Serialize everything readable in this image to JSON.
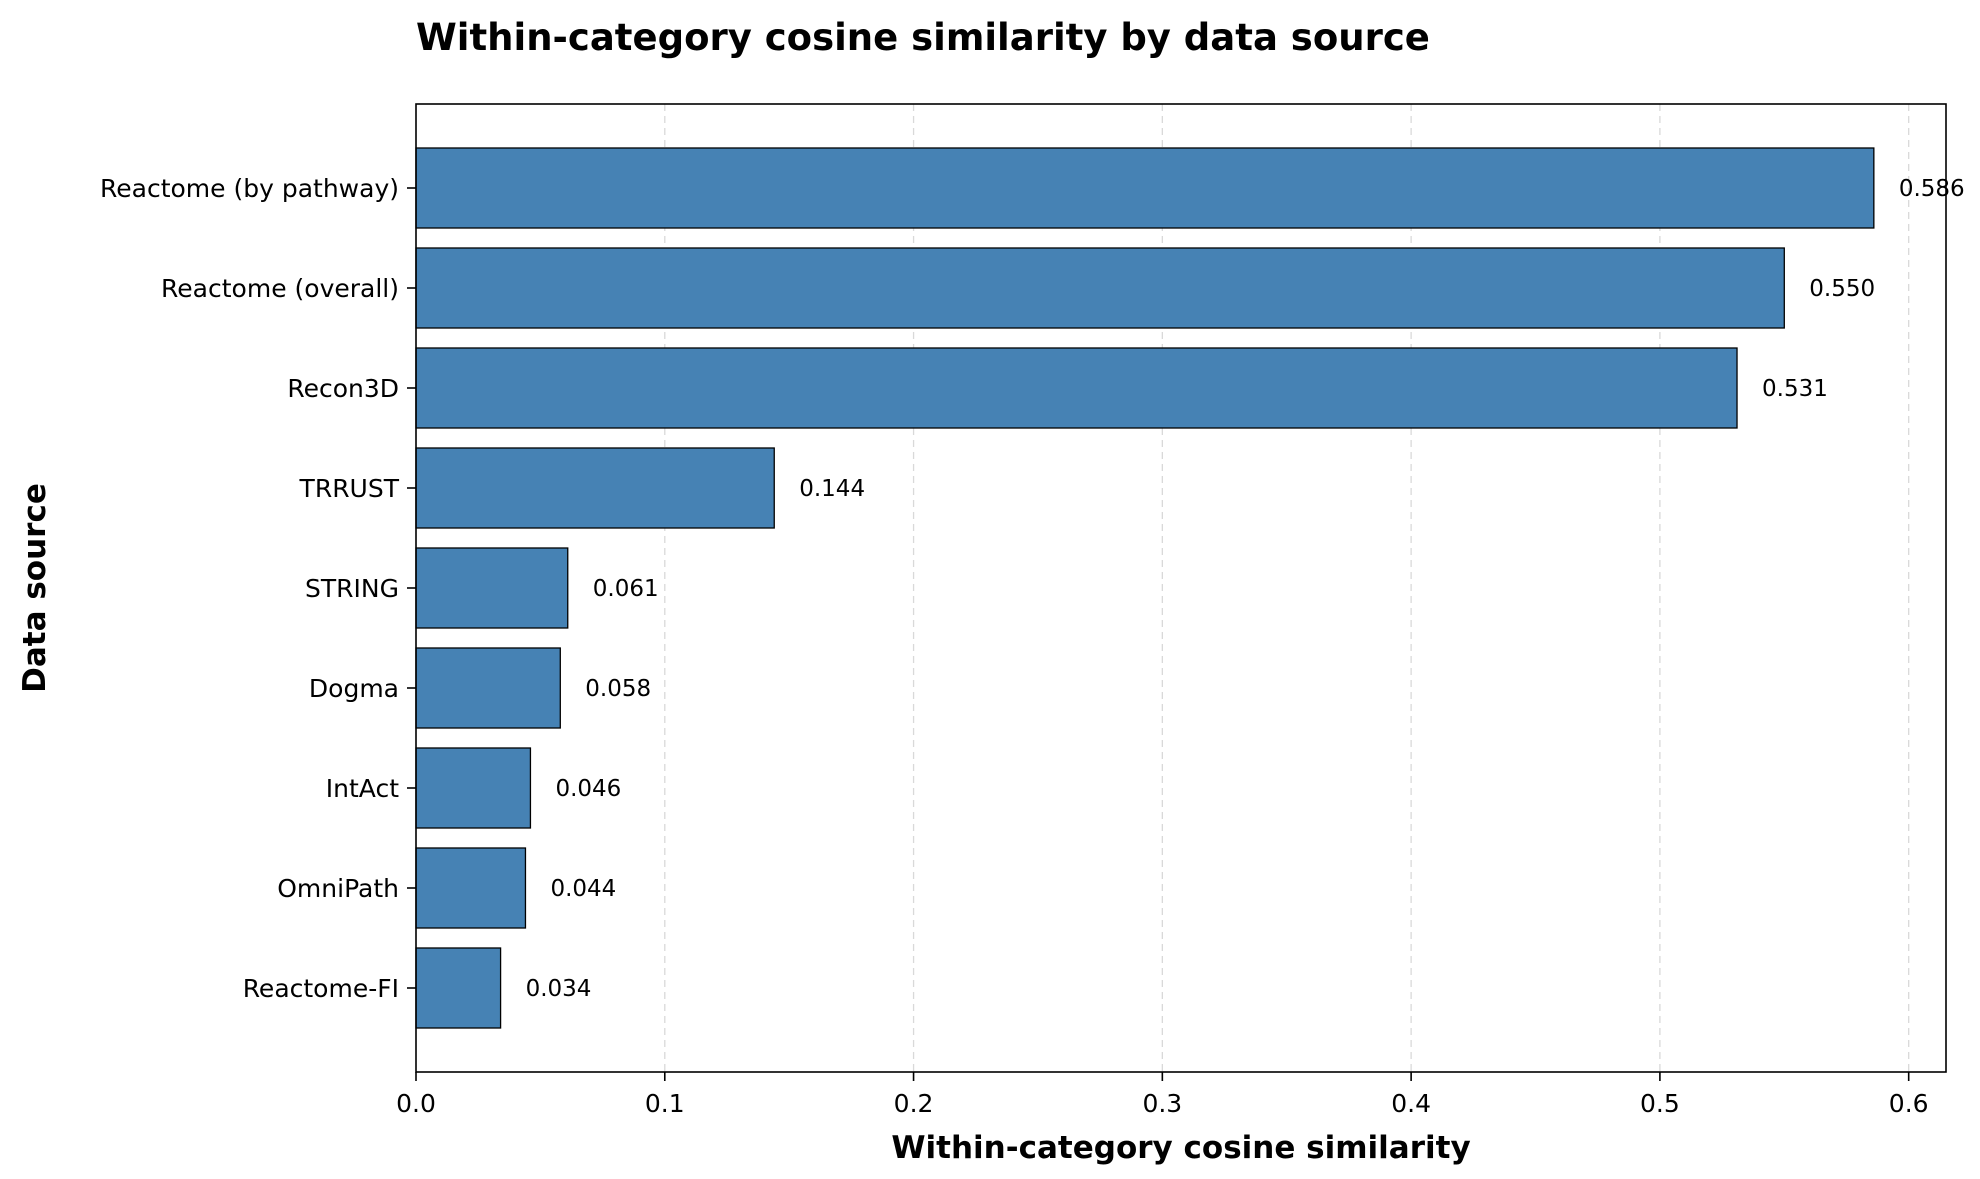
{
  "chart_data": {
    "type": "bar",
    "orientation": "horizontal",
    "title": "Within-category cosine similarity by data source",
    "xlabel": "Within-category cosine similarity",
    "ylabel": "Data source",
    "categories": [
      "Reactome (by pathway)",
      "Reactome (overall)",
      "Recon3D",
      "TRRUST",
      "STRING",
      "Dogma",
      "IntAct",
      "OmniPath",
      "Reactome-FI"
    ],
    "values": [
      0.586,
      0.55,
      0.531,
      0.144,
      0.061,
      0.058,
      0.046,
      0.044,
      0.034
    ],
    "value_labels": [
      "0.586",
      "0.550",
      "0.531",
      "0.144",
      "0.061",
      "0.058",
      "0.046",
      "0.044",
      "0.034"
    ],
    "xticks": [
      0.0,
      0.1,
      0.2,
      0.3,
      0.4,
      0.5,
      0.6
    ],
    "xtick_labels": [
      "0.0",
      "0.1",
      "0.2",
      "0.3",
      "0.4",
      "0.5",
      "0.6"
    ],
    "xlim": [
      0,
      0.615
    ],
    "grid": "x, dashed",
    "bar_color": "#4682b4",
    "edge_color": "#000000"
  }
}
